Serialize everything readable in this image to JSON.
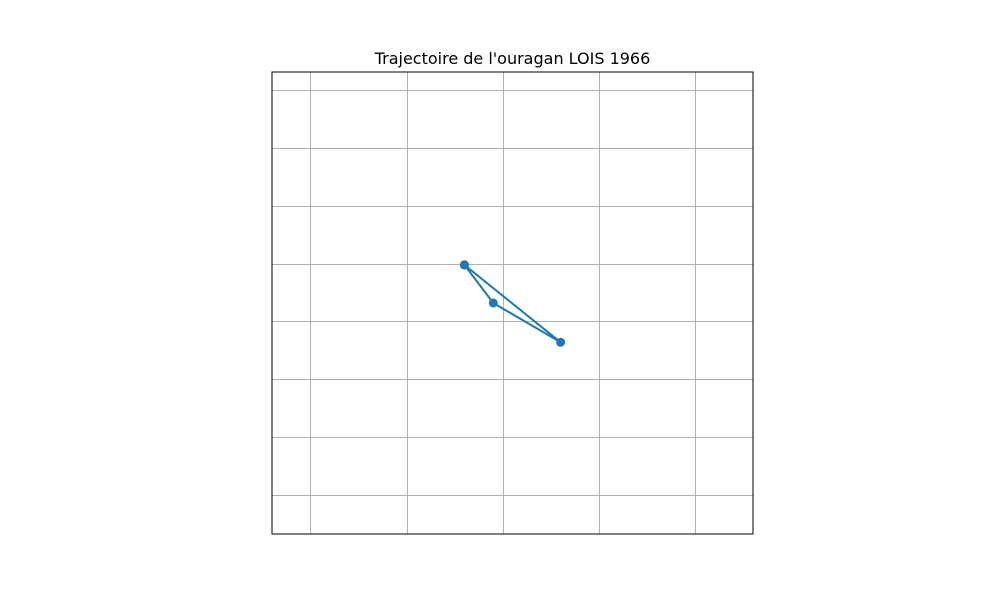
{
  "chart_data": {
    "type": "line",
    "title": "Trajectoire de l'ouragan LOIS 1966",
    "xlabel": "",
    "ylabel": "",
    "xlim": [
      -62.7,
      -57.7
    ],
    "ylim": [
      30.3,
      34.3
    ],
    "grid": true,
    "x_gridlines": [
      -62.3,
      -61.3,
      -60.3,
      -59.3,
      -58.3
    ],
    "y_gridlines": [
      34.14,
      33.64,
      33.14,
      32.64,
      32.14,
      31.64,
      31.14,
      30.64
    ],
    "markers": true,
    "series": [
      {
        "x": [
          -60.7,
          -59.7,
          -60.4,
          -60.7
        ],
        "y": [
          32.63,
          31.96,
          32.3,
          32.63
        ],
        "color": "#1f77b4"
      }
    ]
  }
}
